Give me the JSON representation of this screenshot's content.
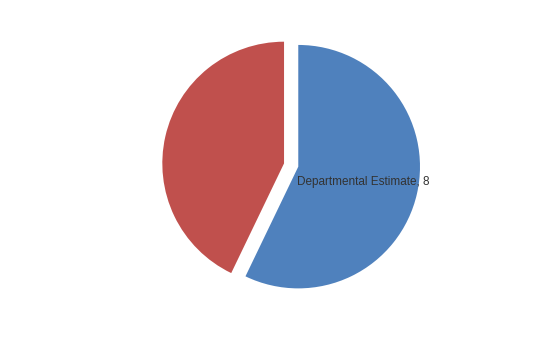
{
  "chart_data": {
    "type": "pie",
    "values": [
      8,
      6
    ],
    "value_labels": [
      "Departmental Estimate, 8",
      null
    ],
    "colors": [
      "#4f81bd",
      "#c0504d"
    ],
    "data_labels": true
  }
}
